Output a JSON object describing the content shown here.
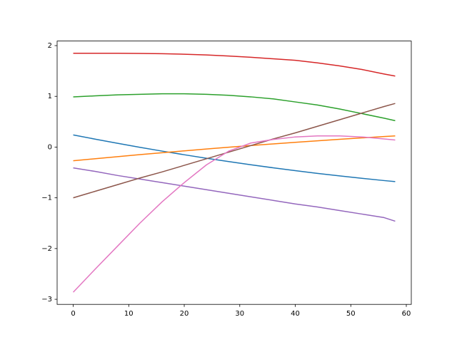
{
  "chart_data": {
    "type": "line",
    "x": [
      0,
      4,
      8,
      12,
      16,
      20,
      24,
      28,
      32,
      36,
      40,
      44,
      48,
      52,
      56,
      58
    ],
    "series": [
      {
        "color": "#1f77b4",
        "values": [
          0.24,
          0.156,
          0.074,
          -0.004,
          -0.079,
          -0.151,
          -0.22,
          -0.286,
          -0.349,
          -0.408,
          -0.464,
          -0.518,
          -0.568,
          -0.615,
          -0.66,
          -0.68
        ]
      },
      {
        "color": "#ff7f0e",
        "values": [
          -0.27,
          -0.229,
          -0.188,
          -0.149,
          -0.111,
          -0.074,
          -0.038,
          -0.003,
          0.03,
          0.062,
          0.094,
          0.124,
          0.153,
          0.181,
          0.208,
          0.22
        ]
      },
      {
        "color": "#2ca02c",
        "values": [
          0.99,
          1.01,
          1.03,
          1.04,
          1.05,
          1.05,
          1.04,
          1.02,
          0.99,
          0.95,
          0.89,
          0.83,
          0.75,
          0.66,
          0.57,
          0.52
        ]
      },
      {
        "color": "#d62728",
        "values": [
          1.85,
          1.85,
          1.85,
          1.845,
          1.84,
          1.83,
          1.815,
          1.795,
          1.77,
          1.74,
          1.71,
          1.66,
          1.6,
          1.53,
          1.44,
          1.4
        ]
      },
      {
        "color": "#9467bd",
        "values": [
          -0.41,
          -0.48,
          -0.56,
          -0.63,
          -0.7,
          -0.77,
          -0.84,
          -0.91,
          -0.98,
          -1.05,
          -1.12,
          -1.18,
          -1.25,
          -1.32,
          -1.39,
          -1.46
        ]
      },
      {
        "color": "#8c564b",
        "values": [
          -1.0,
          -0.87,
          -0.74,
          -0.61,
          -0.49,
          -0.36,
          -0.23,
          -0.1,
          0.03,
          0.16,
          0.28,
          0.41,
          0.54,
          0.67,
          0.8,
          0.86
        ]
      },
      {
        "color": "#e377c2",
        "values": [
          -2.86,
          -2.4,
          -1.95,
          -1.5,
          -1.08,
          -0.7,
          -0.35,
          -0.08,
          0.08,
          0.15,
          0.2,
          0.22,
          0.22,
          0.2,
          0.16,
          0.14
        ]
      }
    ],
    "xlim": [
      -2.9,
      60.9
    ],
    "ylim": [
      -3.1,
      2.09
    ],
    "xticks": [
      0,
      10,
      20,
      30,
      40,
      50,
      60
    ],
    "yticks": [
      -3,
      -2,
      -1,
      0,
      1,
      2
    ],
    "grid": false
  }
}
